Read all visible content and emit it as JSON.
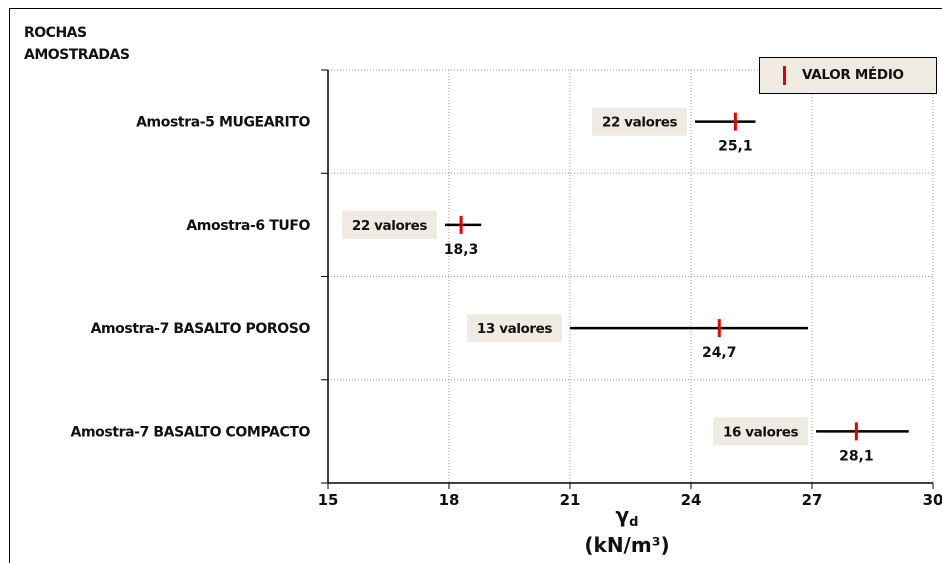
{
  "chart_data": {
    "type": "error-bar",
    "y_title_lines": [
      "ROCHAS",
      "AMOSTRADAS"
    ],
    "x_label_symbol": "γ",
    "x_label_subscript": "d",
    "x_label_unit": "(kN/m³)",
    "xlim": [
      15,
      30
    ],
    "x_ticks": [
      "15",
      "18",
      "21",
      "24",
      "27",
      "30"
    ],
    "grid": true,
    "legend": {
      "position": "top-right",
      "label": "VALOR MÉDIO",
      "marker_color": "#e60000"
    },
    "categories": [
      {
        "name": "Amostra-5 MUGEARITO",
        "mean": 25.1,
        "mean_label": "25,1",
        "min": 24.1,
        "max": 25.6,
        "count_label": "22 valores"
      },
      {
        "name": "Amostra-6 TUFO",
        "mean": 18.3,
        "mean_label": "18,3",
        "min": 17.9,
        "max": 18.8,
        "count_label": "22 valores"
      },
      {
        "name": "Amostra-7 BASALTO POROSO",
        "mean": 24.7,
        "mean_label": "24,7",
        "min": 21.0,
        "max": 26.9,
        "count_label": "13 valores"
      },
      {
        "name": "Amostra-7 BASALTO COMPACTO",
        "mean": 28.1,
        "mean_label": "28,1",
        "min": 27.1,
        "max": 29.4,
        "count_label": "16 valores"
      }
    ],
    "colors": {
      "range_line": "#000000",
      "mean_marker": "#e60000",
      "count_box": "#efebe3"
    }
  }
}
